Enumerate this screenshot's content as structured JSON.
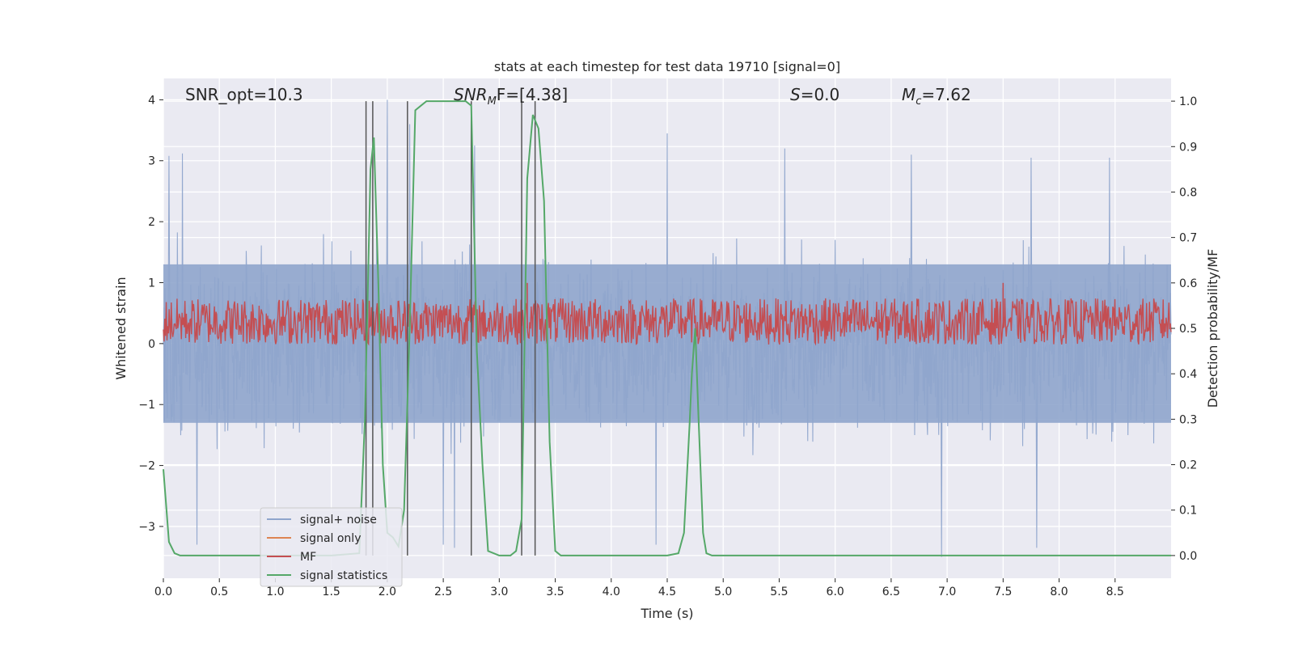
{
  "chart_data": {
    "type": "line",
    "title": "stats at each timestep for test data 19710 [signal=0]",
    "xlabel": "Time (s)",
    "ylabel_left": "Whitened strain",
    "ylabel_right": "Detection probability/MF",
    "xlim": [
      0,
      9.0
    ],
    "ylim_left": [
      -3.85,
      4.35
    ],
    "ylim_right": [
      -0.05,
      1.05
    ],
    "x_ticks": [
      0.0,
      0.5,
      1.0,
      1.5,
      2.0,
      2.5,
      3.0,
      3.5,
      4.0,
      4.5,
      5.0,
      5.5,
      6.0,
      6.5,
      7.0,
      7.5,
      8.0,
      8.5
    ],
    "x_tick_labels": [
      "0.0",
      "0.5",
      "1.0",
      "1.5",
      "2.0",
      "2.5",
      "3.0",
      "3.5",
      "4.0",
      "4.5",
      "5.0",
      "5.5",
      "6.0",
      "6.5",
      "7.0",
      "7.5",
      "8.0",
      "8.5"
    ],
    "y_left_ticks": [
      -3,
      -2,
      -1,
      0,
      1,
      2,
      3,
      4
    ],
    "y_left_tick_labels": [
      "−3",
      "−2",
      "−1",
      "0",
      "1",
      "2",
      "3",
      "4"
    ],
    "y_right_ticks": [
      0.0,
      0.1,
      0.2,
      0.3,
      0.4,
      0.5,
      0.6,
      0.7,
      0.8,
      0.9,
      1.0
    ],
    "y_right_tick_labels": [
      "0.0",
      "0.1",
      "0.2",
      "0.3",
      "0.4",
      "0.5",
      "0.6",
      "0.7",
      "0.8",
      "0.9",
      "1.0"
    ],
    "grid": true,
    "legend_position": "lower-left",
    "colors": {
      "background": "#eaeaf2",
      "grid": "#ffffff",
      "signal_noise": "#8fa5cc",
      "signal_only": "#dd8452",
      "mf": "#c44e52",
      "signal_statistics": "#55a868",
      "vlines": "#555555"
    },
    "annotations": {
      "snr_opt": "SNR_opt=10.3",
      "snr_mf_base": "SNR",
      "snr_mf_sub": "M",
      "snr_mf_rest": "F=[4.38]",
      "s_italic": "S",
      "s_value": "=0.0",
      "mc_base": "M",
      "mc_sub": "c",
      "mc_value": "=7.62"
    },
    "series": [
      {
        "name": "signal+ noise",
        "axis": "left",
        "description_level": "noise, approx range -3.3 to 4.0, dense",
        "sample_count": 1800,
        "typical_min": -2.9,
        "typical_max": 3.1,
        "core_lo": -1.3,
        "core_hi": 1.3,
        "peaks": [
          {
            "x": 0.05,
            "y": 3.08
          },
          {
            "x": 0.17,
            "y": 3.12
          },
          {
            "x": 2.0,
            "y": 4.0
          },
          {
            "x": 2.2,
            "y": 3.6
          },
          {
            "x": 2.6,
            "y": 3.4
          },
          {
            "x": 2.75,
            "y": 3.05
          },
          {
            "x": 2.78,
            "y": 3.25
          },
          {
            "x": 4.5,
            "y": 3.45
          },
          {
            "x": 5.55,
            "y": 3.2
          },
          {
            "x": 6.68,
            "y": 3.1
          },
          {
            "x": 7.75,
            "y": 3.05
          },
          {
            "x": 8.45,
            "y": 3.05
          }
        ],
        "troughs": [
          {
            "x": 0.3,
            "y": -3.3
          },
          {
            "x": 2.5,
            "y": -3.3
          },
          {
            "x": 2.6,
            "y": -3.35
          },
          {
            "x": 4.4,
            "y": -3.3
          },
          {
            "x": 6.95,
            "y": -3.5
          },
          {
            "x": 7.8,
            "y": -3.35
          }
        ]
      },
      {
        "name": "signal only",
        "axis": "left",
        "values_description": "flat, not visible"
      },
      {
        "name": "MF",
        "axis": "right",
        "baseline": 0.5,
        "range": [
          0.46,
          0.58
        ],
        "spikes": [
          {
            "x": 3.25,
            "y": 0.6
          },
          {
            "x": 7.5,
            "y": 0.6
          }
        ]
      },
      {
        "name": "signal statistics",
        "axis": "right",
        "x": [
          0.0,
          0.05,
          0.1,
          0.15,
          0.2,
          0.25,
          0.3,
          1.0,
          1.5,
          1.75,
          1.8,
          1.85,
          1.88,
          1.92,
          1.96,
          2.0,
          2.05,
          2.1,
          2.15,
          2.2,
          2.25,
          2.3,
          2.35,
          2.4,
          2.5,
          2.6,
          2.65,
          2.7,
          2.75,
          2.8,
          2.85,
          2.9,
          3.0,
          3.05,
          3.1,
          3.15,
          3.2,
          3.25,
          3.3,
          3.35,
          3.4,
          3.45,
          3.5,
          3.55,
          3.6,
          4.0,
          4.5,
          4.6,
          4.65,
          4.7,
          4.72,
          4.75,
          4.78,
          4.82,
          4.85,
          4.9,
          5.0,
          6.0,
          7.0,
          8.0,
          9.0
        ],
        "y": [
          0.19,
          0.03,
          0.005,
          0.0,
          0.0,
          0.0,
          0.0,
          0.0,
          0.0,
          0.005,
          0.3,
          0.85,
          0.92,
          0.6,
          0.2,
          0.05,
          0.04,
          0.02,
          0.1,
          0.5,
          0.98,
          0.99,
          1.0,
          1.0,
          1.0,
          1.0,
          1.0,
          1.0,
          0.99,
          0.45,
          0.2,
          0.01,
          0.0,
          0.0,
          0.0,
          0.01,
          0.08,
          0.83,
          0.97,
          0.94,
          0.78,
          0.25,
          0.01,
          0.0,
          0.0,
          0.0,
          0.0,
          0.005,
          0.05,
          0.29,
          0.4,
          0.5,
          0.3,
          0.05,
          0.005,
          0.0,
          0.0,
          0.0,
          0.0,
          0.0,
          0.0
        ]
      }
    ],
    "vertical_lines_x": [
      1.81,
      1.87,
      2.18,
      2.75,
      3.2,
      3.32
    ],
    "legend": [
      {
        "label": "signal+ noise",
        "color_key": "signal_noise"
      },
      {
        "label": "signal only",
        "color_key": "signal_only"
      },
      {
        "label": "MF",
        "color_key": "mf"
      },
      {
        "label": "signal statistics",
        "color_key": "signal_statistics"
      }
    ]
  }
}
